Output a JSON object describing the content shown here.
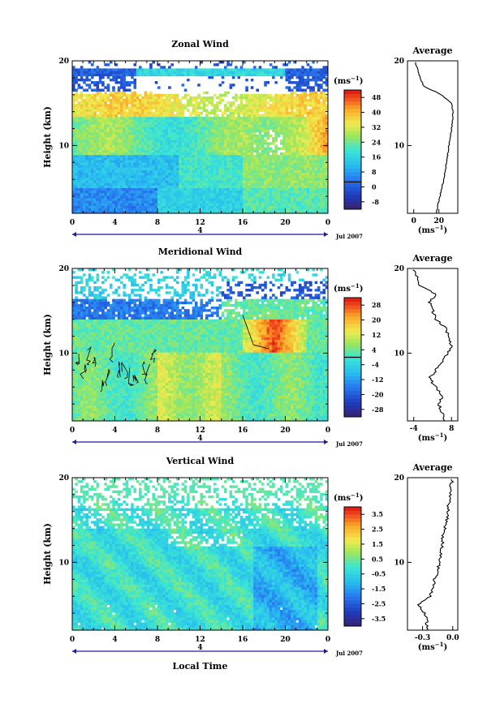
{
  "chart_data": [
    {
      "type": "heatmap",
      "title": "Zonal Wind",
      "ylabel": "Height (km)",
      "xlabel": "",
      "xticks": [
        "0",
        "4",
        "8",
        "12",
        "16",
        "20",
        "0"
      ],
      "yticks": [
        "20",
        "10"
      ],
      "ylim": [
        2,
        20
      ],
      "xlim": [
        0,
        24
      ],
      "date_label": "4",
      "date_suffix": "Jul 2007",
      "colorbar": {
        "unit_base": "(ms",
        "unit_exp": "−1",
        "unit_close": ")",
        "ticks": [
          "48",
          "40",
          "32",
          "24",
          "16",
          "8",
          "0",
          "-8"
        ],
        "range": [
          -12,
          52
        ]
      },
      "profile": {
        "title": "Average",
        "yticks": [
          "20",
          "10"
        ],
        "xticks": [
          "0",
          "20"
        ],
        "xlim": [
          -5,
          35
        ],
        "xlabel_base": "(ms",
        "xlabel_exp": "−1",
        "xlabel_close": ")",
        "heights": [
          2,
          3,
          4,
          5,
          6,
          7,
          8,
          9,
          10,
          11,
          12,
          13,
          14,
          15,
          16,
          17,
          18,
          19,
          20
        ],
        "values": [
          18,
          19,
          21,
          22,
          24,
          25,
          26,
          27,
          28,
          29,
          30,
          31,
          31,
          30,
          22,
          8,
          5,
          3,
          1
        ]
      }
    },
    {
      "type": "heatmap",
      "title": "Meridional Wind",
      "ylabel": "Height (km)",
      "xlabel": "",
      "xticks": [
        "0",
        "4",
        "8",
        "12",
        "16",
        "20",
        "0"
      ],
      "yticks": [
        "20",
        "10"
      ],
      "ylim": [
        2,
        20
      ],
      "xlim": [
        0,
        24
      ],
      "date_label": "4",
      "date_suffix": "Jul 2007",
      "colorbar": {
        "unit_base": "(ms",
        "unit_exp": "−1",
        "unit_close": ")",
        "ticks": [
          "28",
          "20",
          "12",
          "4",
          "-4",
          "-12",
          "-20",
          "-28"
        ],
        "range": [
          -32,
          32
        ]
      },
      "profile": {
        "title": "Average",
        "yticks": [
          "20",
          "10"
        ],
        "xticks": [
          "-4",
          "8"
        ],
        "xlim": [
          -6,
          10
        ],
        "xlabel_base": "(ms",
        "xlabel_exp": "−1",
        "xlabel_close": ")",
        "heights": [
          2,
          3,
          4,
          5,
          6,
          7,
          8,
          9,
          10,
          11,
          12,
          13,
          14,
          15,
          16,
          17,
          18,
          19,
          20
        ],
        "values": [
          6,
          5,
          4,
          5,
          3,
          1,
          3,
          5,
          7,
          8,
          7,
          6,
          3,
          2,
          1,
          3,
          -2,
          -3,
          -4
        ]
      }
    },
    {
      "type": "heatmap",
      "title": "Vertical Wind",
      "ylabel": "Height (km)",
      "xlabel": "Local Time",
      "xticks": [
        "0",
        "4",
        "8",
        "12",
        "16",
        "20",
        "0"
      ],
      "yticks": [
        "20",
        "10"
      ],
      "ylim": [
        2,
        20
      ],
      "xlim": [
        0,
        24
      ],
      "date_label": "4",
      "date_suffix": "Jul 2007",
      "colorbar": {
        "unit_base": "(ms",
        "unit_exp": "−1",
        "unit_close": ")",
        "ticks": [
          "3.5",
          "2.5",
          "1.5",
          "0.5",
          "-0.5",
          "-1.5",
          "-2.5",
          "-3.5"
        ],
        "range": [
          -4,
          4
        ]
      },
      "profile": {
        "title": "Average",
        "yticks": [
          "20",
          "10"
        ],
        "xticks": [
          "-0.3",
          "0.0"
        ],
        "xlim": [
          -0.45,
          0.05
        ],
        "xlabel_base": "(ms",
        "xlabel_exp": "−1",
        "xlabel_close": ")",
        "heights": [
          2,
          3,
          4,
          5,
          6,
          7,
          8,
          9,
          10,
          11,
          12,
          13,
          14,
          15,
          16,
          17,
          18,
          19,
          20
        ],
        "values": [
          -0.25,
          -0.26,
          -0.28,
          -0.35,
          -0.22,
          -0.2,
          -0.18,
          -0.15,
          -0.13,
          -0.12,
          -0.1,
          -0.1,
          -0.08,
          -0.06,
          -0.05,
          -0.04,
          -0.03,
          -0.02,
          0.0
        ]
      }
    }
  ]
}
